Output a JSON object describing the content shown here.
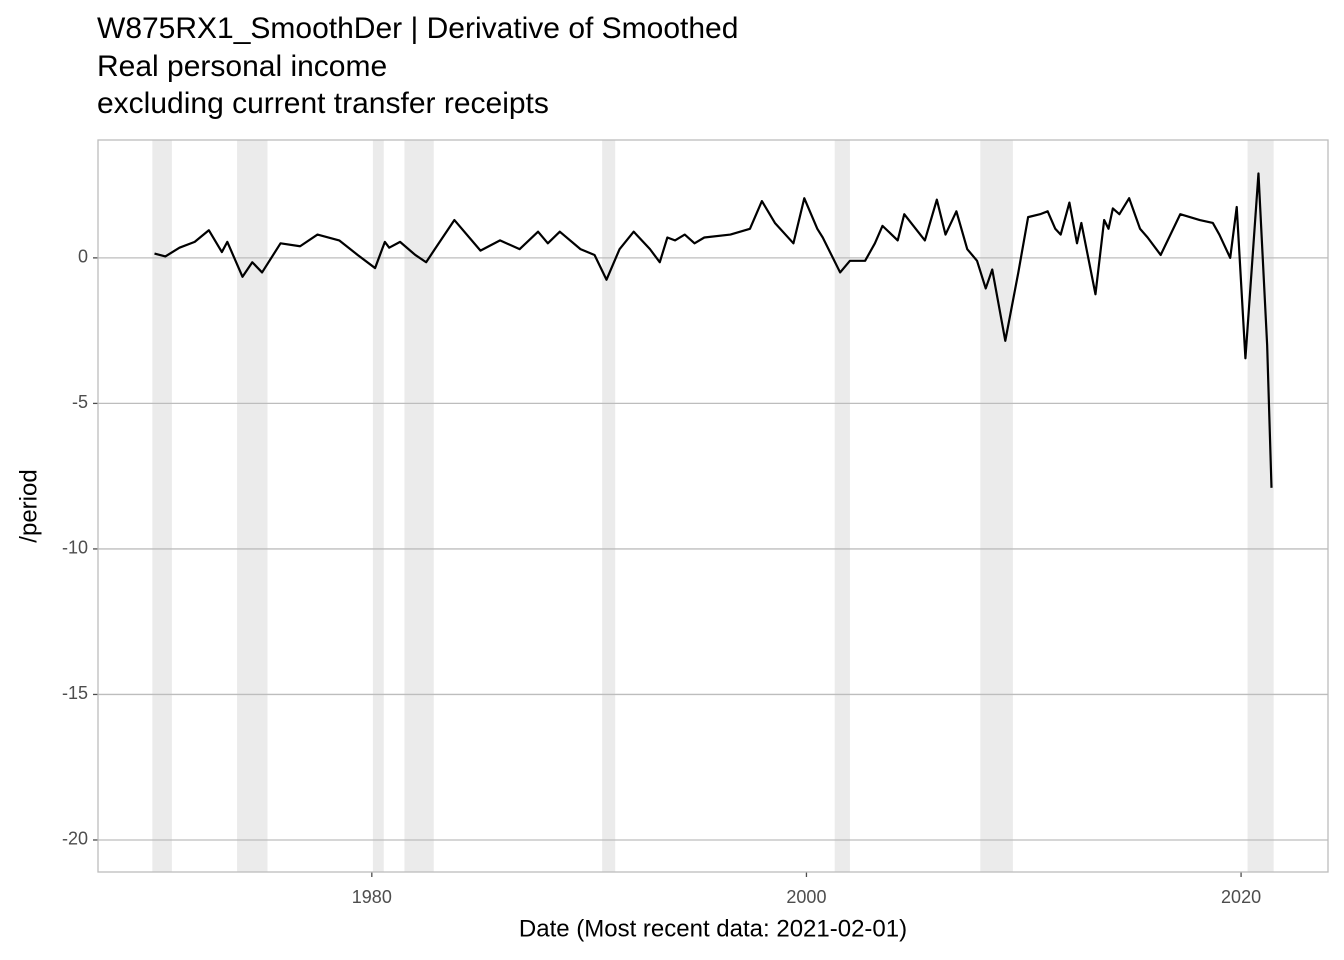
{
  "chart_data": {
    "type": "line",
    "title": "W875RX1_SmoothDer | Derivative of Smoothed",
    "subtitle": [
      "Real personal income",
      "excluding current transfer receipts"
    ],
    "x_label": "Date (Most recent data: 2021-02-01)",
    "y_label": "/period",
    "xlim": [
      1967.4,
      2024.0
    ],
    "xticks": [
      1980,
      2000,
      2020
    ],
    "ylim": [
      -21.1,
      4.05
    ],
    "yticks": [
      0,
      -5,
      -10,
      -15,
      -20
    ],
    "grid": true,
    "shaded_periods": [
      [
        1969.9,
        1970.8
      ],
      [
        1973.8,
        1975.2
      ],
      [
        1980.05,
        1980.55
      ],
      [
        1981.5,
        1982.85
      ],
      [
        1990.6,
        1991.2
      ],
      [
        2001.3,
        2002.0
      ],
      [
        2008.0,
        2009.5
      ],
      [
        2020.3,
        2021.5
      ]
    ],
    "shade_color": "#ebebeb",
    "series": [
      {
        "color": "#000000",
        "x": [
          1970.0,
          1970.5,
          1971.15,
          1971.85,
          1972.5,
          1973.1,
          1973.35,
          1974.05,
          1974.5,
          1974.95,
          1975.8,
          1976.7,
          1977.5,
          1978.5,
          1979.35,
          1980.15,
          1980.6,
          1980.8,
          1981.3,
          1982.0,
          1982.5,
          1982.9,
          1983.8,
          1985.0,
          1985.9,
          1986.8,
          1987.65,
          1988.1,
          1988.65,
          1989.6,
          1990.25,
          1990.8,
          1991.4,
          1992.05,
          1992.8,
          1993.25,
          1993.6,
          1993.95,
          1994.4,
          1994.85,
          1995.3,
          1996.5,
          1997.4,
          1997.95,
          1998.55,
          1999.4,
          1999.9,
          2000.5,
          2000.75,
          2001.55,
          2002.0,
          2002.7,
          2003.15,
          2003.5,
          2004.2,
          2004.5,
          2005.45,
          2006.0,
          2006.4,
          2006.9,
          2007.4,
          2007.85,
          2008.25,
          2008.55,
          2009.15,
          2009.75,
          2010.2,
          2010.75,
          2011.1,
          2011.45,
          2011.7,
          2012.1,
          2012.45,
          2012.65,
          2013.3,
          2013.7,
          2013.9,
          2014.1,
          2014.4,
          2014.85,
          2015.35,
          2015.7,
          2016.3,
          2017.2,
          2018.1,
          2018.7,
          2019.0,
          2019.5,
          2019.8,
          2020.2,
          2020.8,
          2021.2,
          2021.4
        ],
        "values": [
          0.15,
          0.05,
          0.35,
          0.55,
          0.95,
          0.2,
          0.55,
          -0.65,
          -0.15,
          -0.5,
          0.5,
          0.4,
          0.8,
          0.6,
          0.1,
          -0.35,
          0.55,
          0.35,
          0.55,
          0.1,
          -0.15,
          0.3,
          1.3,
          0.25,
          0.6,
          0.3,
          0.9,
          0.5,
          0.9,
          0.3,
          0.1,
          -0.75,
          0.3,
          0.9,
          0.3,
          -0.15,
          0.7,
          0.6,
          0.8,
          0.5,
          0.7,
          0.8,
          1.0,
          1.95,
          1.2,
          0.5,
          2.05,
          1.0,
          0.7,
          -0.5,
          -0.1,
          -0.1,
          0.5,
          1.1,
          0.6,
          1.5,
          0.6,
          2.0,
          0.8,
          1.6,
          0.3,
          -0.1,
          -1.05,
          -0.4,
          -2.85,
          -0.5,
          1.4,
          1.5,
          1.6,
          1.0,
          0.8,
          1.9,
          0.5,
          1.2,
          -1.25,
          1.3,
          1.0,
          1.7,
          1.5,
          2.05,
          1.0,
          0.7,
          0.1,
          1.5,
          1.3,
          1.2,
          0.8,
          0.0,
          1.75,
          -3.45,
          2.9,
          -3.0,
          -7.9
        ]
      }
    ]
  }
}
